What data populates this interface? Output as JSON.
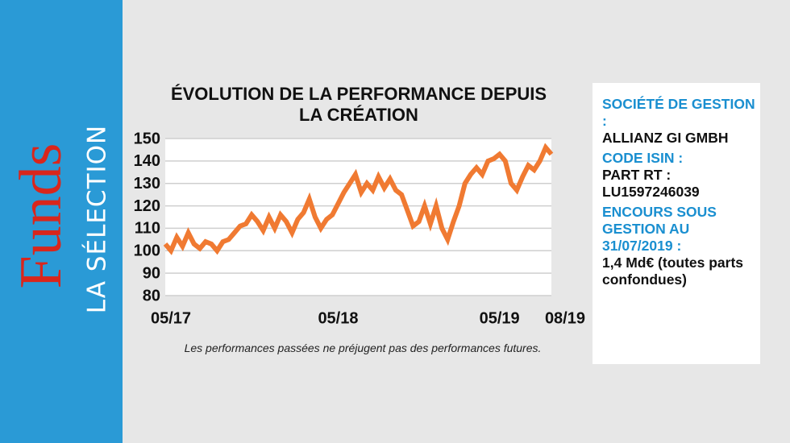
{
  "sidebar": {
    "brand": "Funds",
    "subtitle": "LA SÉLECTION"
  },
  "chart_data": {
    "type": "line",
    "title": "ÉVOLUTION DE LA PERFORMANCE DEPUIS LA CRÉATION",
    "categories": [
      "05/17",
      null,
      null,
      null,
      null,
      null,
      null,
      null,
      null,
      null,
      null,
      null,
      null,
      null,
      null,
      null,
      null,
      null,
      null,
      null,
      null,
      null,
      null,
      null,
      null,
      null,
      null,
      null,
      null,
      null,
      "05/18",
      null,
      null,
      null,
      null,
      null,
      null,
      null,
      null,
      null,
      null,
      null,
      null,
      null,
      null,
      null,
      null,
      null,
      null,
      null,
      null,
      null,
      null,
      null,
      null,
      null,
      null,
      null,
      "05/19",
      null,
      null,
      null,
      null,
      null,
      null,
      null,
      null,
      "08/19"
    ],
    "values": [
      103,
      100,
      106,
      102,
      108,
      103,
      101,
      104,
      103,
      100,
      104,
      105,
      108,
      111,
      112,
      116,
      113,
      109,
      115,
      110,
      116,
      113,
      108,
      114,
      117,
      123,
      115,
      110,
      114,
      116,
      121,
      126,
      130,
      134,
      126,
      130,
      127,
      133,
      128,
      132,
      127,
      125,
      118,
      111,
      113,
      120,
      112,
      120,
      110,
      105,
      113,
      120,
      130,
      134,
      137,
      134,
      140,
      141,
      143,
      140,
      130,
      127,
      133,
      138,
      136,
      140,
      146,
      143
    ],
    "color": "#f07a32",
    "ylim": [
      80,
      150
    ],
    "yticks": [
      80,
      90,
      100,
      110,
      120,
      130,
      140,
      150
    ],
    "grid": true,
    "note": "Les performances passées ne préjugent pas des performances futures."
  },
  "info": [
    {
      "label": "SOCIÉTÉ DE GESTION :",
      "value": "ALLIANZ GI GMBH"
    },
    {
      "label": "CODE ISIN :",
      "value": "PART RT : LU1597246039"
    },
    {
      "label": "ENCOURS SOUS GESTION AU 31/07/2019 :",
      "value": "1,4 Md€ (toutes parts confondues)"
    }
  ]
}
